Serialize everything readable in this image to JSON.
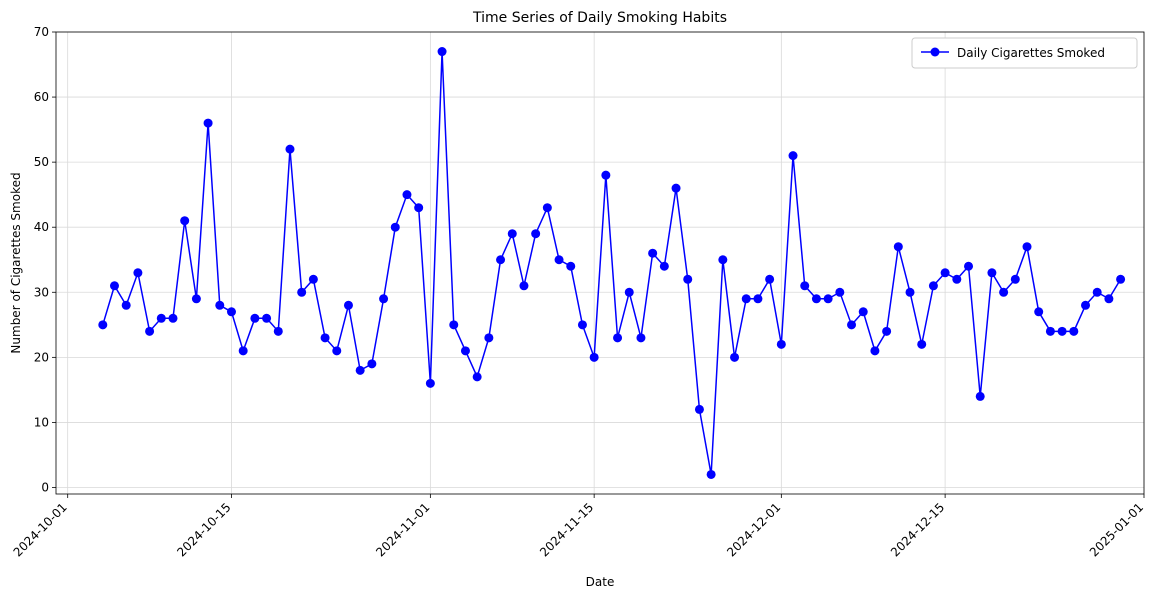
{
  "chart_data": {
    "type": "line",
    "title": "Time Series of Daily Smoking Habits",
    "xlabel": "Date",
    "ylabel": "Number of Cigarettes Smoked",
    "x_start": "2024-10-04",
    "x_end": "2024-12-31",
    "xlim": [
      "2024-09-30",
      "2025-01-01"
    ],
    "ylim": [
      -1,
      70
    ],
    "x_ticks": [
      "2024-10-01",
      "2024-10-15",
      "2024-11-01",
      "2024-11-15",
      "2024-12-01",
      "2024-12-15",
      "2025-01-01"
    ],
    "y_ticks": [
      0,
      10,
      20,
      30,
      40,
      50,
      60,
      70
    ],
    "grid": true,
    "legend_position": "top-right",
    "series": [
      {
        "name": "Daily Cigarettes Smoked",
        "color": "#0000ff",
        "marker": "circle",
        "values": [
          25,
          31,
          28,
          33,
          24,
          26,
          26,
          41,
          29,
          56,
          28,
          27,
          21,
          26,
          26,
          24,
          52,
          30,
          32,
          23,
          21,
          28,
          18,
          19,
          29,
          40,
          45,
          43,
          16,
          67,
          25,
          21,
          17,
          23,
          35,
          39,
          31,
          39,
          43,
          35,
          34,
          25,
          20,
          48,
          23,
          30,
          23,
          36,
          34,
          46,
          32,
          12,
          2,
          35,
          20,
          29,
          29,
          32,
          22,
          51,
          31,
          29,
          29,
          30,
          25,
          27,
          21,
          24,
          37,
          30,
          22,
          31,
          33,
          32,
          34,
          14,
          33,
          30,
          32,
          37,
          27,
          24,
          24,
          24,
          28,
          30,
          29,
          32
        ]
      }
    ]
  }
}
